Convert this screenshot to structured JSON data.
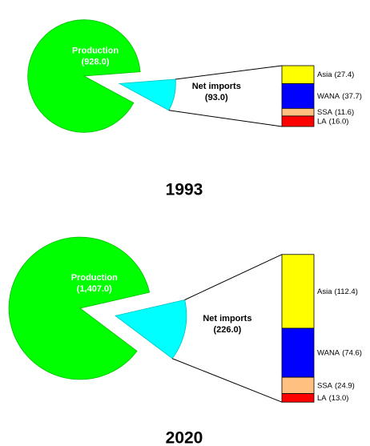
{
  "chart_data": [
    {
      "type": "pie",
      "title": "1993",
      "categories": [
        "Production",
        "Net imports"
      ],
      "values": [
        928.0,
        93.0
      ],
      "value_labels": [
        "(928.0)",
        "(93.0)"
      ],
      "colors": [
        "#00ff00",
        "#00ffff"
      ],
      "breakdown": {
        "categories": [
          "Asia",
          "WANA",
          "SSA",
          "LA"
        ],
        "values": [
          27.4,
          37.7,
          11.6,
          16.0
        ],
        "value_labels": [
          "(27.4)",
          "(37.7)",
          "(11.6)",
          "(16.0)"
        ],
        "colors": [
          "#ffff00",
          "#0000ff",
          "#ffc080",
          "#ff0000"
        ]
      }
    },
    {
      "type": "pie",
      "title": "2020",
      "categories": [
        "Production",
        "Net imports"
      ],
      "values": [
        1407.0,
        226.0
      ],
      "value_labels": [
        "(1,407.0)",
        "(226.0)"
      ],
      "colors": [
        "#00ff00",
        "#00ffff"
      ],
      "breakdown": {
        "categories": [
          "Asia",
          "WANA",
          "SSA",
          "LA"
        ],
        "values": [
          112.4,
          74.6,
          24.9,
          13.0
        ],
        "value_labels": [
          "(112.4)",
          "(74.6)",
          "(24.9)",
          "(13.0)"
        ],
        "colors": [
          "#ffff00",
          "#0000ff",
          "#ffc080",
          "#ff0000"
        ]
      }
    }
  ]
}
